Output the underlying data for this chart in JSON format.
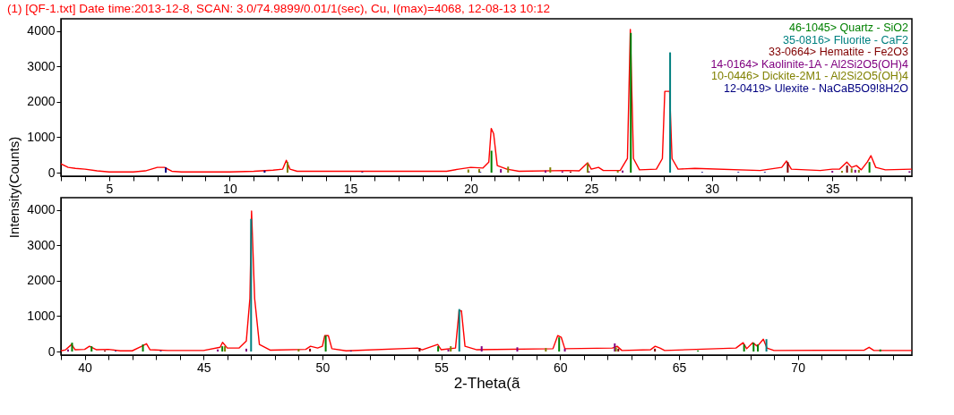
{
  "chart_data": [
    {
      "type": "line",
      "title": "(1) [QF-1.txt] Date time:2013-12-8, SCAN: 3.0/74.9899/0.01/1(sec), Cu, I(max)=4068, 12-08-13 10:12",
      "ylabel": "Intensity(Counts)",
      "legend": "top right",
      "grid": false,
      "xlim": [
        3,
        38.3
      ],
      "ylim": [
        -100,
        4350
      ],
      "yticks": [
        0,
        1000,
        2000,
        3000,
        4000
      ],
      "xticks": [
        {
          "value": 3,
          "label": null
        },
        {
          "value": 4,
          "label": null
        },
        5,
        {
          "value": 6,
          "label": null
        },
        {
          "value": 7,
          "label": null
        },
        {
          "value": 8,
          "label": null
        },
        {
          "value": 9,
          "label": null
        },
        10,
        {
          "value": 11,
          "label": null
        },
        {
          "value": 12,
          "label": null
        },
        {
          "value": 13,
          "label": null
        },
        {
          "value": 14,
          "label": null
        },
        15,
        {
          "value": 16,
          "label": null
        },
        {
          "value": 17,
          "label": null
        },
        {
          "value": 18,
          "label": null
        },
        {
          "value": 19,
          "label": null
        },
        20,
        {
          "value": 21,
          "label": null
        },
        {
          "value": 22,
          "label": null
        },
        {
          "value": 23,
          "label": null
        },
        {
          "value": 24,
          "label": null
        },
        25,
        {
          "value": 26,
          "label": null
        },
        {
          "value": 27,
          "label": null
        },
        {
          "value": 28,
          "label": null
        },
        {
          "value": 29,
          "label": null
        },
        30,
        {
          "value": 31,
          "label": null
        },
        {
          "value": 32,
          "label": null
        },
        {
          "value": 33,
          "label": null
        },
        {
          "value": 34,
          "label": null
        },
        35,
        {
          "value": 36,
          "label": null
        },
        {
          "value": 37,
          "label": null
        },
        {
          "value": 38,
          "label": null
        }
      ],
      "series": [
        {
          "color": "#ff0000",
          "x": [
            3.0,
            3.3,
            3.6,
            4,
            4.5,
            5,
            6,
            6.5,
            7,
            7.3,
            7.6,
            8,
            10,
            11,
            11.8,
            12.2,
            12.35,
            12.5,
            12.8,
            14,
            19,
            19.5,
            20,
            20.5,
            20.75,
            20.85,
            20.95,
            21.1,
            21.5,
            22,
            24,
            24.5,
            24.85,
            25.0,
            25.3,
            25.5,
            26.2,
            26.5,
            26.62,
            26.75,
            27.0,
            27.7,
            27.95,
            28.05,
            28.25,
            28.35,
            28.6,
            29.3,
            32,
            32.9,
            33.1,
            33.3,
            34.5,
            35.0,
            35.3,
            35.6,
            35.8,
            36.0,
            36.2,
            36.45,
            36.6,
            36.8,
            37.2,
            38.3
          ],
          "values": [
            250,
            150,
            120,
            100,
            50,
            20,
            20,
            50,
            150,
            150,
            40,
            20,
            20,
            40,
            70,
            100,
            350,
            100,
            40,
            40,
            40,
            100,
            150,
            130,
            300,
            1250,
            1100,
            200,
            100,
            40,
            60,
            50,
            280,
            100,
            150,
            60,
            60,
            400,
            4050,
            400,
            80,
            100,
            400,
            2300,
            2300,
            400,
            100,
            120,
            60,
            150,
            330,
            100,
            60,
            100,
            100,
            300,
            150,
            200,
            80,
            300,
            480,
            150,
            80,
            100
          ]
        },
        {
          "type": "bar",
          "name": "46-1045> Quartz - SiO2",
          "color": "#008000",
          "x": [
            20.86,
            26.64,
            36.54
          ],
          "values": [
            620,
            3950,
            300
          ]
        },
        {
          "type": "bar",
          "name": "35-0816> Fluorite - CaF2",
          "color": "#008080",
          "x": [
            28.27
          ],
          "values": [
            3400
          ]
        },
        {
          "type": "bar",
          "name": "33-0664> Hematite - Fe2O3",
          "color": "#800000",
          "x": [
            24.14,
            33.15,
            35.61
          ],
          "values": [
            30,
            300,
            200
          ]
        },
        {
          "type": "bar",
          "name": "14-0164> Kaolinite-1A - Al2Si2O5(OH)4",
          "color": "#800080",
          "x": [
            21.25,
            23.1,
            23.8,
            24.9,
            26.3,
            35.0,
            35.95,
            38.2
          ],
          "values": [
            100,
            60,
            40,
            40,
            60,
            50,
            80,
            40
          ]
        },
        {
          "type": "bar",
          "name": "10-0446> Dickite-2M1 - Al2Si2O5(OH)4",
          "color": "#808000",
          "x": [
            12.4,
            19.9,
            20.35,
            21.55,
            23.3,
            24.85,
            26.1,
            35.4,
            35.8,
            36.1
          ],
          "values": [
            300,
            90,
            100,
            170,
            150,
            270,
            60,
            50,
            120,
            80
          ]
        },
        {
          "type": "bar",
          "name": "12-0419> Ulexite - NaCaB5O9!8H2O",
          "color": "#000080",
          "x": [
            7.35,
            11.45,
            15.5,
            20.4,
            29.6,
            31.1,
            32.2
          ],
          "values": [
            150,
            60,
            20,
            20,
            20,
            20,
            20
          ]
        }
      ]
    },
    {
      "type": "line",
      "xlabel": "2-Theta(ã",
      "grid": false,
      "xlim": [
        39,
        74.8
      ],
      "ylim": [
        -100,
        4350
      ],
      "yticks": [
        0,
        1000,
        2000,
        3000,
        4000
      ],
      "xticks": [
        {
          "value": 39,
          "label": null
        },
        40,
        {
          "value": 41,
          "label": null
        },
        {
          "value": 42,
          "label": null
        },
        {
          "value": 43,
          "label": null
        },
        {
          "value": 44,
          "label": null
        },
        45,
        {
          "value": 46,
          "label": null
        },
        {
          "value": 47,
          "label": null
        },
        {
          "value": 48,
          "label": null
        },
        {
          "value": 49,
          "label": null
        },
        50,
        {
          "value": 51,
          "label": null
        },
        {
          "value": 52,
          "label": null
        },
        {
          "value": 53,
          "label": null
        },
        {
          "value": 54,
          "label": null
        },
        55,
        {
          "value": 56,
          "label": null
        },
        {
          "value": 57,
          "label": null
        },
        {
          "value": 58,
          "label": null
        },
        {
          "value": 59,
          "label": null
        },
        60,
        {
          "value": 61,
          "label": null
        },
        {
          "value": 62,
          "label": null
        },
        {
          "value": 63,
          "label": null
        },
        {
          "value": 64,
          "label": null
        },
        65,
        {
          "value": 66,
          "label": null
        },
        {
          "value": 67,
          "label": null
        },
        {
          "value": 68,
          "label": null
        },
        {
          "value": 69,
          "label": null
        },
        70,
        {
          "value": 71,
          "label": null
        },
        {
          "value": 72,
          "label": null
        },
        {
          "value": 73,
          "label": null
        },
        {
          "value": 74,
          "label": null
        }
      ],
      "series": [
        {
          "color": "#ff0000",
          "x": [
            39,
            39.2,
            39.45,
            39.6,
            40.0,
            40.2,
            40.5,
            41,
            41.5,
            42,
            42.4,
            42.6,
            42.75,
            43.5,
            45,
            45.7,
            45.8,
            46.0,
            46.5,
            46.8,
            46.95,
            47.02,
            47.15,
            47.35,
            47.8,
            49.3,
            49.5,
            49.8,
            50.0,
            50.1,
            50.25,
            50.4,
            51,
            54.0,
            54.2,
            54.85,
            55.0,
            55.6,
            55.75,
            55.85,
            56.0,
            56.5,
            59.7,
            59.9,
            60.05,
            60.2,
            62.2,
            62.4,
            62.6,
            63.8,
            64.0,
            64.2,
            64.4,
            67.4,
            67.7,
            67.85,
            68.1,
            68.3,
            68.55,
            68.7,
            69.0,
            72.8,
            73.0,
            73.2,
            74.8
          ],
          "values": [
            20,
            50,
            200,
            50,
            60,
            150,
            50,
            60,
            20,
            20,
            150,
            220,
            50,
            30,
            30,
            120,
            260,
            100,
            100,
            300,
            1500,
            3970,
            1500,
            200,
            40,
            60,
            150,
            100,
            150,
            450,
            450,
            80,
            20,
            100,
            50,
            200,
            50,
            100,
            1150,
            1150,
            150,
            50,
            80,
            450,
            400,
            80,
            100,
            150,
            30,
            50,
            150,
            100,
            30,
            100,
            250,
            80,
            250,
            150,
            350,
            100,
            30,
            40,
            120,
            30,
            30
          ]
        },
        {
          "type": "bar",
          "color": "#008000",
          "x": [
            39.47,
            40.29,
            42.45,
            45.79,
            50.14,
            54.87,
            59.96,
            65.8,
            67.74,
            68.14,
            68.32,
            73.47
          ],
          "values": [
            250,
            150,
            200,
            150,
            450,
            150,
            400,
            30,
            200,
            250,
            200,
            60
          ]
        },
        {
          "type": "bar",
          "color": "#008080",
          "x": [
            47.0,
            55.76,
            68.68
          ],
          "values": [
            3750,
            1200,
            350
          ]
        },
        {
          "type": "bar",
          "color": "#800000",
          "x": [
            40.85,
            49.48,
            54.09,
            62.45,
            63.99
          ],
          "values": [
            30,
            80,
            100,
            80,
            80
          ]
        },
        {
          "type": "bar",
          "color": "#800080",
          "x": [
            39.3,
            45.6,
            46.8,
            55.3,
            56.7,
            58.2,
            60.2,
            62.3
          ],
          "values": [
            60,
            60,
            80,
            60,
            150,
            120,
            80,
            230
          ]
        },
        {
          "type": "bar",
          "color": "#808000",
          "x": [
            45.9,
            49.0,
            55.4,
            59.4,
            62.35
          ],
          "values": [
            150,
            70,
            150,
            100,
            120
          ]
        },
        {
          "type": "bar",
          "color": "#000080",
          "x": [
            41.3,
            43.2,
            51.2
          ],
          "values": [
            20,
            20,
            20
          ]
        }
      ]
    }
  ]
}
